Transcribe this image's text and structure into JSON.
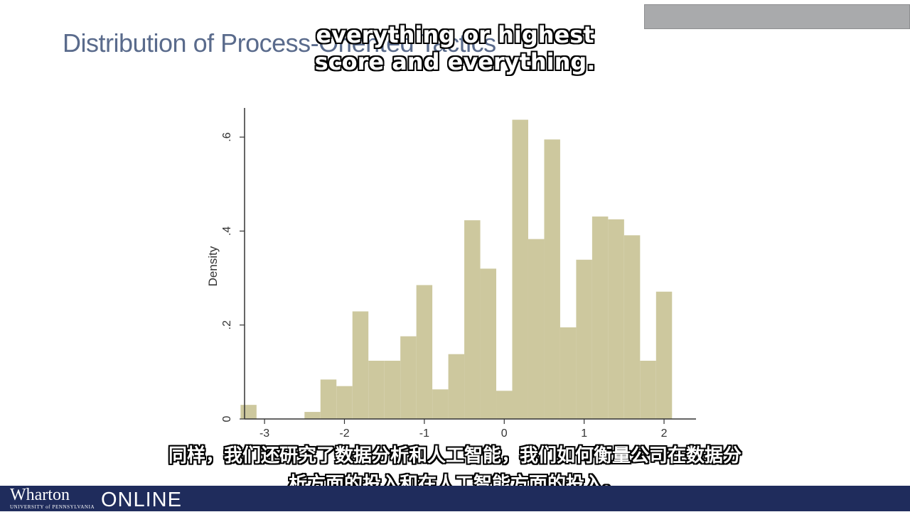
{
  "slide": {
    "title": "Distribution of Process-Oriented Tactics"
  },
  "captions": {
    "english": [
      "everything or highest",
      "score and everything."
    ],
    "chinese": [
      "同样，我们还研究了数据分析和人工智能，我们如何衡量公司在数据分",
      "析方面的投入和在人工智能方面的投入。"
    ]
  },
  "footer": {
    "brand": "Wharton",
    "brand_sub": "UNIVERSITY of PENNSYLVANIA",
    "online": "ONLINE"
  },
  "colors": {
    "bar_fill": "#cdc89e",
    "axis": "#333333",
    "footer_bg": "#1f2c5c",
    "title": "#5a6b8c"
  },
  "chart_data": {
    "type": "bar",
    "ylabel": "Density",
    "xlim": [
      -3.25,
      2.4
    ],
    "ylim": [
      0,
      0.65
    ],
    "xticks": [
      -3,
      -2,
      -1,
      0,
      1,
      2
    ],
    "xtick_labels": [
      "-3",
      "-2",
      "-1",
      "0",
      "1",
      "2"
    ],
    "yticks": [
      0,
      0.2,
      0.4,
      0.6
    ],
    "ytick_labels": [
      "0",
      ".2",
      ".4",
      ".6"
    ],
    "bin_width": 0.2,
    "bins": [
      {
        "x": -3.2,
        "density": 0.03
      },
      {
        "x": -2.4,
        "density": 0.015
      },
      {
        "x": -2.2,
        "density": 0.084
      },
      {
        "x": -2.0,
        "density": 0.07
      },
      {
        "x": -1.8,
        "density": 0.229
      },
      {
        "x": -1.6,
        "density": 0.124
      },
      {
        "x": -1.4,
        "density": 0.124
      },
      {
        "x": -1.2,
        "density": 0.176
      },
      {
        "x": -1.0,
        "density": 0.285
      },
      {
        "x": -0.8,
        "density": 0.063
      },
      {
        "x": -0.6,
        "density": 0.138
      },
      {
        "x": -0.4,
        "density": 0.423
      },
      {
        "x": -0.2,
        "density": 0.32
      },
      {
        "x": 0.0,
        "density": 0.06
      },
      {
        "x": 0.2,
        "density": 0.637
      },
      {
        "x": 0.4,
        "density": 0.383
      },
      {
        "x": 0.6,
        "density": 0.595
      },
      {
        "x": 0.8,
        "density": 0.195
      },
      {
        "x": 1.0,
        "density": 0.339
      },
      {
        "x": 1.2,
        "density": 0.431
      },
      {
        "x": 1.4,
        "density": 0.425
      },
      {
        "x": 1.6,
        "density": 0.391
      },
      {
        "x": 1.8,
        "density": 0.124
      },
      {
        "x": 2.0,
        "density": 0.271
      }
    ]
  }
}
